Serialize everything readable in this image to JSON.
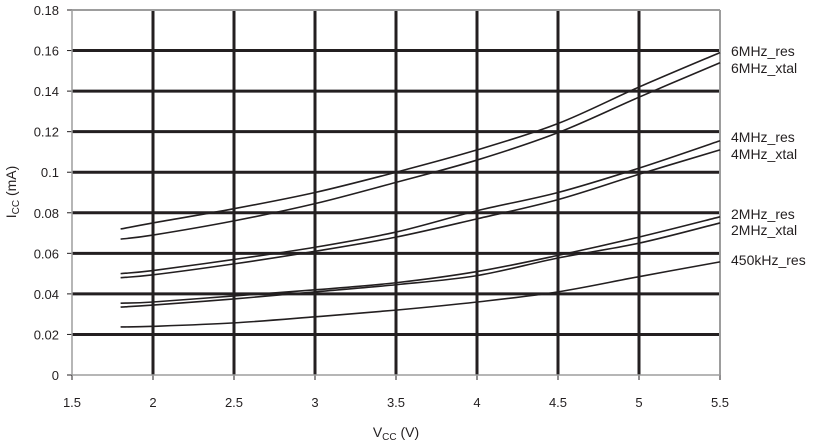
{
  "chart_data": {
    "type": "line",
    "xlabel": {
      "main": "V",
      "sub": "CC",
      "unit": " (V)"
    },
    "ylabel": {
      "main": "I",
      "sub": "CC",
      "unit": " (mA)"
    },
    "xlim": [
      1.5,
      5.5
    ],
    "ylim": [
      0,
      0.18
    ],
    "xticks": [
      "1.5",
      "2",
      "2.5",
      "3",
      "3.5",
      "4",
      "4.5",
      "5",
      "5.5"
    ],
    "yticks": [
      "0",
      "0.02",
      "0.04",
      "0.06",
      "0.08",
      "0.1",
      "0.12",
      "0.14",
      "0.16",
      "0.18"
    ],
    "grid": true,
    "legend": "right-edge labels",
    "colors": {
      "line": "#231f20",
      "grid": "#231f20",
      "frame": "#9d9d9d"
    },
    "x": [
      1.8,
      2,
      2.5,
      3,
      3.5,
      4,
      4.5,
      5,
      5.5
    ],
    "series": [
      {
        "name": "6MHz_res",
        "values": [
          0.072,
          0.075,
          0.082,
          0.09,
          0.1,
          0.111,
          0.124,
          0.142,
          0.159
        ]
      },
      {
        "name": "6MHz_xtal",
        "values": [
          0.067,
          0.069,
          0.076,
          0.0845,
          0.095,
          0.106,
          0.1195,
          0.137,
          0.154
        ]
      },
      {
        "name": "4MHz_res",
        "values": [
          0.05,
          0.0515,
          0.057,
          0.063,
          0.0705,
          0.081,
          0.09,
          0.102,
          0.1155
        ]
      },
      {
        "name": "4MHz_xtal",
        "values": [
          0.048,
          0.0494,
          0.0548,
          0.061,
          0.068,
          0.077,
          0.0865,
          0.099,
          0.111
        ]
      },
      {
        "name": "2MHz_res",
        "values": [
          0.0354,
          0.036,
          0.039,
          0.042,
          0.0455,
          0.051,
          0.059,
          0.068,
          0.078
        ]
      },
      {
        "name": "2MHz_xtal",
        "values": [
          0.0335,
          0.0345,
          0.0375,
          0.041,
          0.0445,
          0.049,
          0.0577,
          0.065,
          0.075
        ]
      },
      {
        "name": "450kHz_res",
        "values": [
          0.0237,
          0.024,
          0.0257,
          0.0287,
          0.032,
          0.036,
          0.041,
          0.0485,
          0.0558
        ]
      }
    ]
  }
}
